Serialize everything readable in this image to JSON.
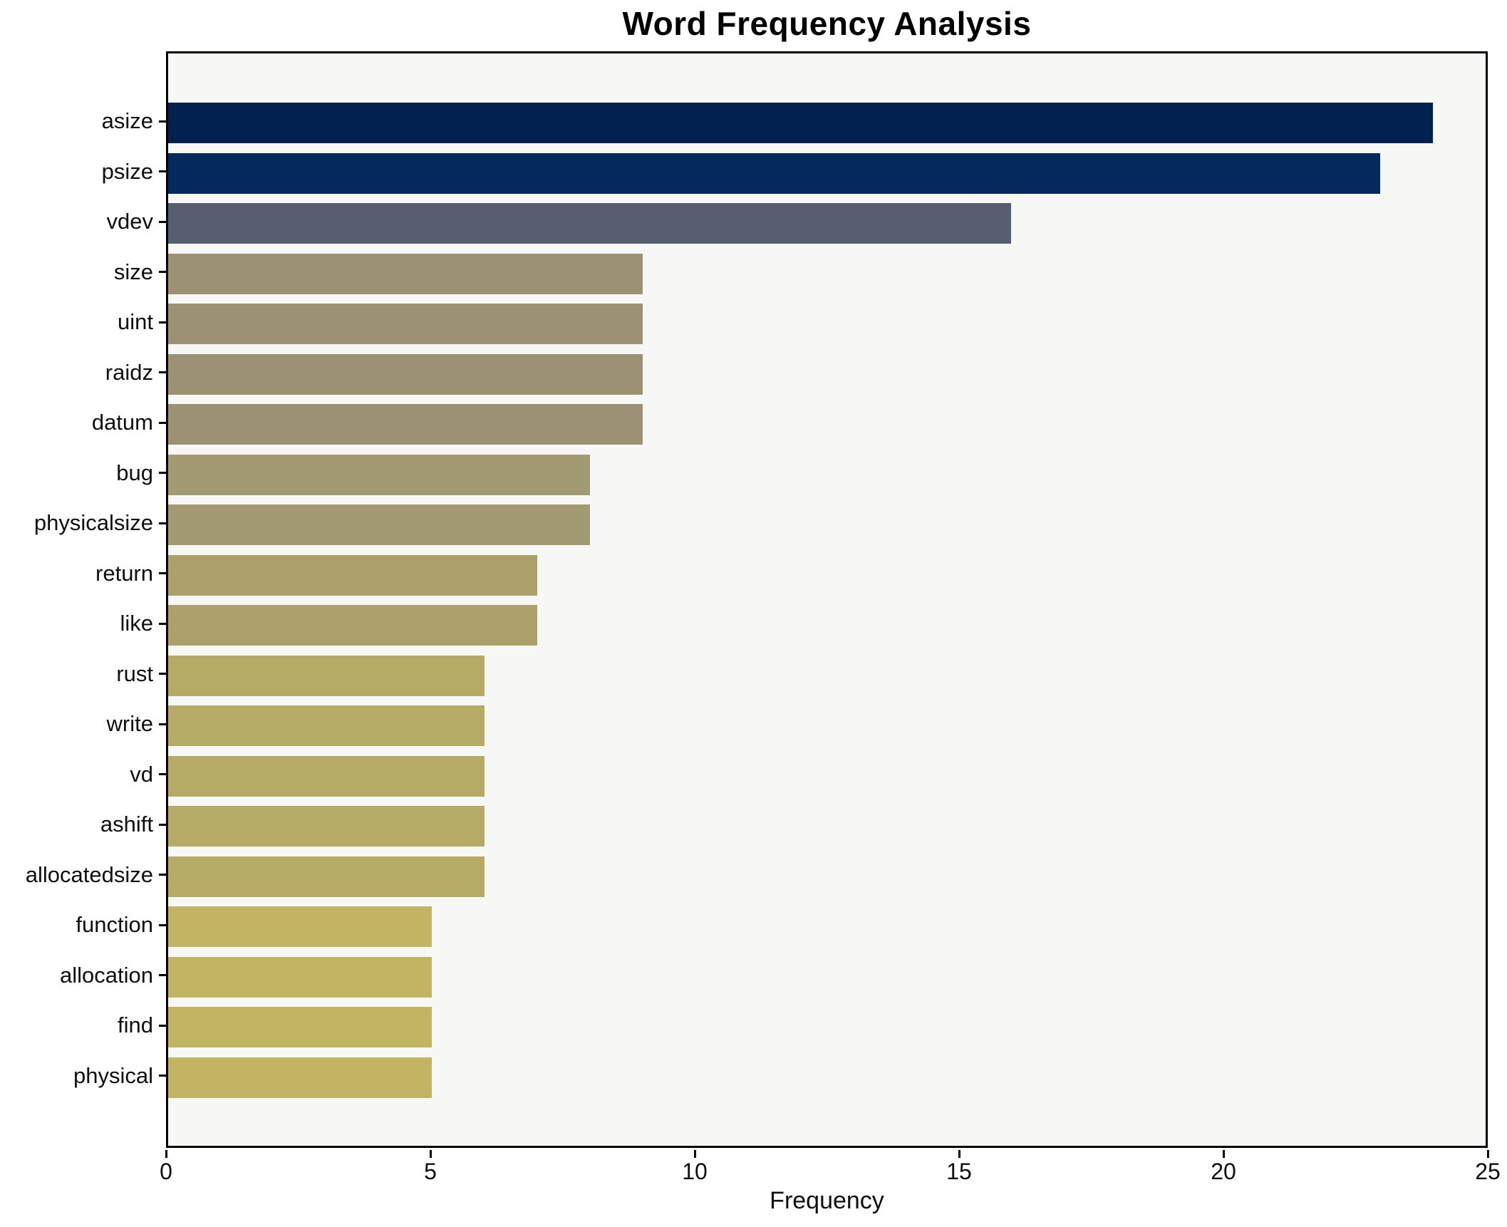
{
  "title": "Word Frequency Analysis",
  "xlabel": "Frequency",
  "chart_data": {
    "type": "bar",
    "orientation": "horizontal",
    "title": "Word Frequency Analysis",
    "xlabel": "Frequency",
    "ylabel": "",
    "xlim": [
      0,
      25
    ],
    "xticks": [
      0,
      5,
      10,
      15,
      20,
      25
    ],
    "grid": false,
    "legend": "none",
    "plot_background": "#f7f7f5",
    "spine_color": "#000000",
    "categories": [
      "asize",
      "psize",
      "vdev",
      "size",
      "uint",
      "raidz",
      "datum",
      "bug",
      "physicalsize",
      "return",
      "like",
      "rust",
      "write",
      "vd",
      "ashift",
      "allocatedsize",
      "function",
      "allocation",
      "find",
      "physical"
    ],
    "values": [
      24,
      23,
      16,
      9,
      9,
      9,
      9,
      8,
      8,
      7,
      7,
      6,
      6,
      6,
      6,
      6,
      5,
      5,
      5,
      5
    ],
    "colors": [
      "#02214f",
      "#05295c",
      "#565e6f",
      "#9a9273",
      "#9a9273",
      "#9a9273",
      "#9a9273",
      "#a29a72",
      "#a29a72",
      "#aca16b",
      "#aca16b",
      "#b5ab66",
      "#b5ab66",
      "#b5ab66",
      "#b5ab66",
      "#b5ab66",
      "#c1b462",
      "#c1b462",
      "#c1b462",
      "#c1b462"
    ]
  }
}
